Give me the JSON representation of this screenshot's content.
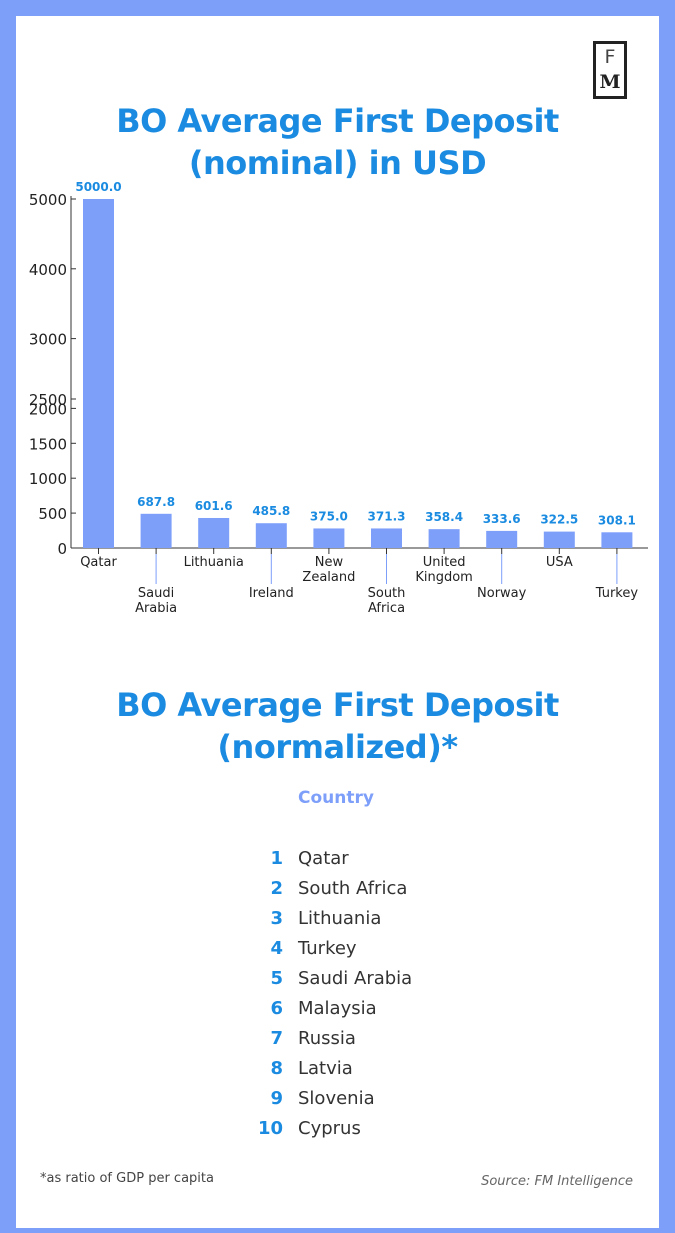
{
  "brand": {
    "logo_top": "F",
    "logo_bottom": "M"
  },
  "chart_data": {
    "type": "bar",
    "title": "BO Average First Deposit (nominal) in USD",
    "title_lines": [
      "BO Average First Deposit",
      "(nominal) in USD"
    ],
    "categories": [
      "Qatar",
      "Saudi Arabia",
      "Lithuania",
      "Ireland",
      "New Zealand",
      "South Africa",
      "United Kingdom",
      "Norway",
      "USA",
      "Turkey"
    ],
    "category_label_lines": [
      [
        "Qatar"
      ],
      [
        "Saudi",
        "Arabia"
      ],
      [
        "Lithuania"
      ],
      [
        "Ireland"
      ],
      [
        "New",
        "Zealand"
      ],
      [
        "South",
        "Africa"
      ],
      [
        "United",
        "Kingdom"
      ],
      [
        "Norway"
      ],
      [
        "USA"
      ],
      [
        "Turkey"
      ]
    ],
    "label_lowered": [
      false,
      true,
      false,
      true,
      false,
      true,
      false,
      true,
      false,
      true
    ],
    "values": [
      5000.0,
      687.8,
      601.6,
      485.8,
      375.0,
      371.3,
      358.4,
      333.6,
      322.5,
      308.1
    ],
    "value_labels": [
      "5000.0",
      "687.8",
      "601.6",
      "485.8",
      "375.0",
      "371.3",
      "358.4",
      "333.6",
      "322.5",
      "308.1"
    ],
    "bar_heights_shown": [
      5000,
      490,
      430,
      355,
      280,
      280,
      270,
      245,
      235,
      225
    ],
    "yticks": [
      0,
      500,
      1000,
      1500,
      2000,
      2500,
      3000,
      4000,
      5000
    ],
    "ylim": [
      0,
      5000
    ],
    "xlabel": "",
    "ylabel": "",
    "grid": false,
    "bar_color": "#7d9ffa",
    "value_label_color": "#1a8be0"
  },
  "ranking": {
    "title_lines": [
      "BO Average First Deposit",
      "(normalized)*"
    ],
    "column_header": "Country",
    "items": [
      {
        "rank": "1",
        "country": "Qatar"
      },
      {
        "rank": "2",
        "country": "South Africa"
      },
      {
        "rank": "3",
        "country": "Lithuania"
      },
      {
        "rank": "4",
        "country": "Turkey"
      },
      {
        "rank": "5",
        "country": "Saudi Arabia"
      },
      {
        "rank": "6",
        "country": "Malaysia"
      },
      {
        "rank": "7",
        "country": "Russia"
      },
      {
        "rank": "8",
        "country": "Latvia"
      },
      {
        "rank": "9",
        "country": "Slovenia"
      },
      {
        "rank": "10",
        "country": "Cyprus"
      }
    ]
  },
  "footnote": "*as ratio of GDP per capita",
  "source": "Source: FM Intelligence",
  "colors": {
    "accent": "#1a8be0",
    "bar": "#7d9ffa",
    "frame": "#7d9ffa"
  }
}
